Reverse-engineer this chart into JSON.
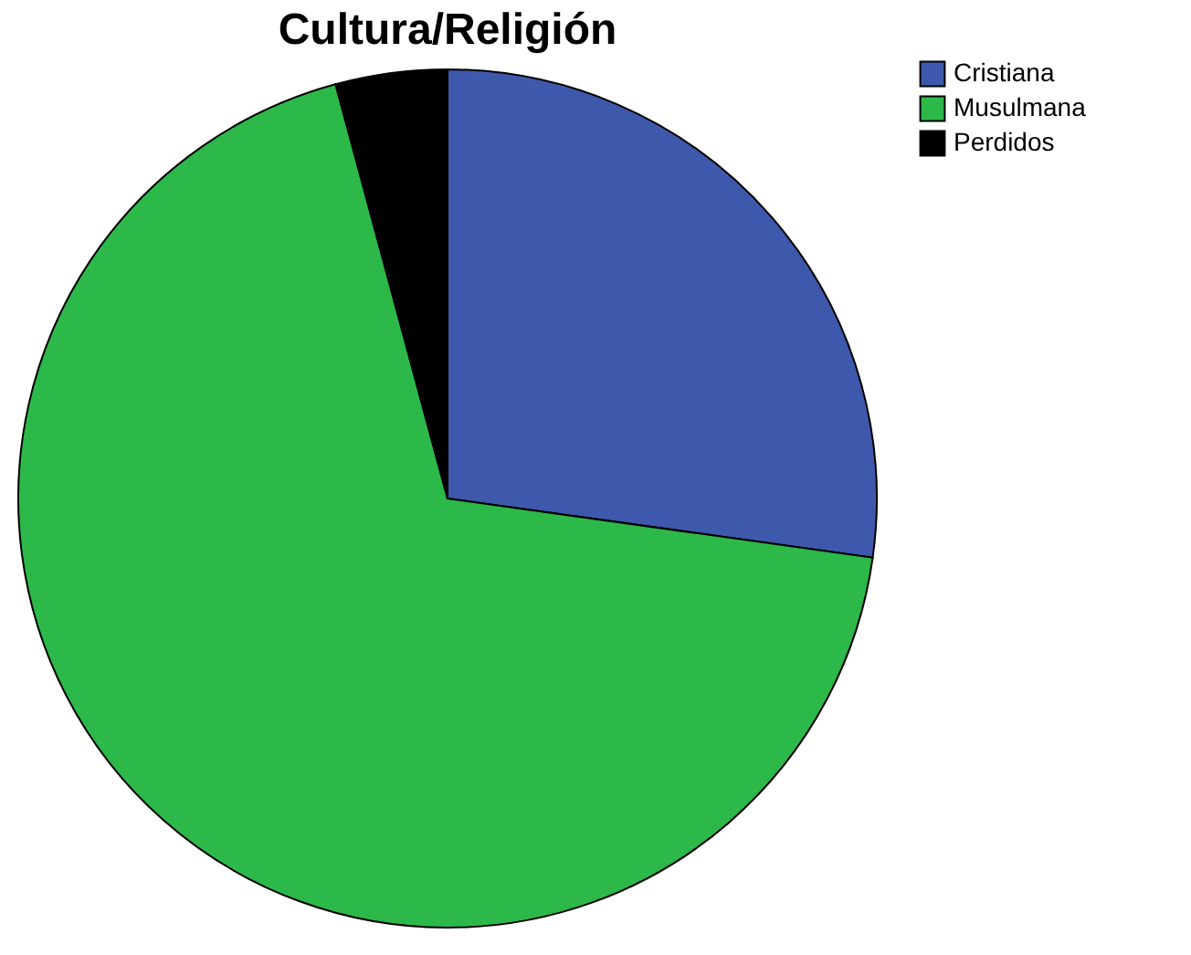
{
  "chart_data": {
    "type": "pie",
    "title": "Cultura/Religión",
    "categories": [
      "Cristiana",
      "Musulmana",
      "Perdidos"
    ],
    "values": [
      27.2,
      68.6,
      4.2
    ],
    "colors": [
      "#3e58ac",
      "#2db84a",
      "#000000"
    ],
    "legend": "top right"
  }
}
